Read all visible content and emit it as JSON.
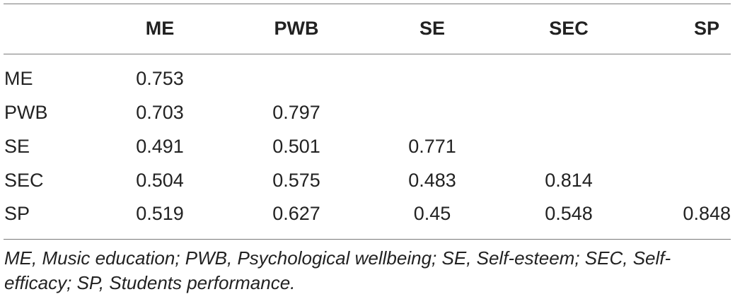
{
  "table": {
    "columns": [
      "ME",
      "PWB",
      "SE",
      "SEC",
      "SP"
    ],
    "rows": [
      {
        "label": "ME",
        "values": [
          "0.753",
          "",
          "",
          "",
          ""
        ]
      },
      {
        "label": "PWB",
        "values": [
          "0.703",
          "0.797",
          "",
          "",
          ""
        ]
      },
      {
        "label": "SE",
        "values": [
          "0.491",
          "0.501",
          "0.771",
          "",
          ""
        ]
      },
      {
        "label": "SEC",
        "values": [
          "0.504",
          "0.575",
          "0.483",
          "0.814",
          ""
        ]
      },
      {
        "label": "SP",
        "values": [
          "0.519",
          "0.627",
          "0.45",
          "0.548",
          "0.848"
        ]
      }
    ],
    "footnote": "ME, Music education; PWB, Psychological wellbeing; SE, Self-esteem; SEC, Self-efficacy; SP, Students performance."
  }
}
